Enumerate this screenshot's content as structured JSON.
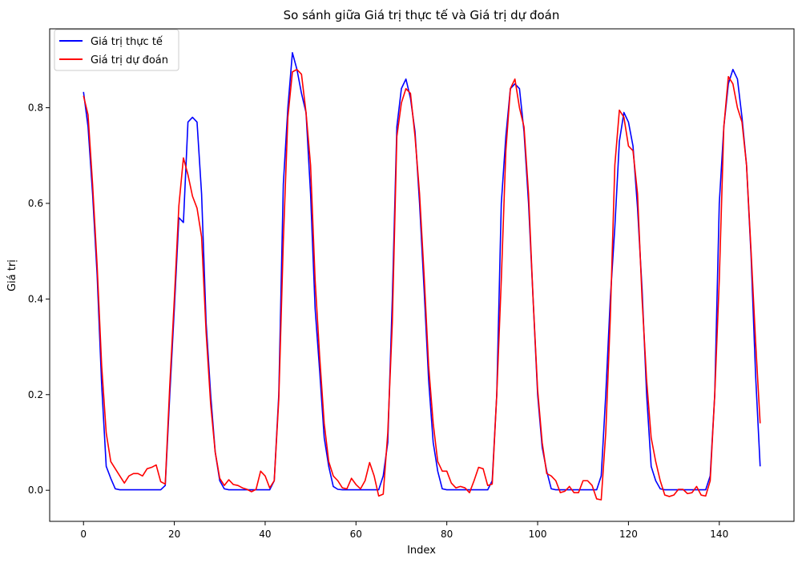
{
  "chart_data": {
    "type": "line",
    "title": "So sánh giữa Giá trị thực tế và Giá trị dự đoán",
    "xlabel": "Index",
    "ylabel": "Giá trị",
    "xlim": [
      -7.45,
      156.45
    ],
    "ylim": [
      -0.065,
      0.965
    ],
    "xticks": [
      0,
      20,
      40,
      60,
      80,
      100,
      120,
      140
    ],
    "yticks": [
      0.0,
      0.2,
      0.4,
      0.6,
      0.8
    ],
    "x_tick_labels": [
      "0",
      "20",
      "40",
      "60",
      "80",
      "100",
      "120",
      "140"
    ],
    "y_tick_labels": [
      "0.0",
      "0.2",
      "0.4",
      "0.6",
      "0.8"
    ],
    "grid": false,
    "legend_position": "upper-left",
    "series": [
      {
        "name": "Giá trị thực tế",
        "color": "#0000ff",
        "values": [
          0.833,
          0.76,
          0.62,
          0.45,
          0.22,
          0.05,
          0.025,
          0.003,
          0.001,
          0.001,
          0.001,
          0.001,
          0.001,
          0.001,
          0.001,
          0.001,
          0.001,
          0.001,
          0.01,
          0.2,
          0.38,
          0.57,
          0.56,
          0.77,
          0.78,
          0.77,
          0.62,
          0.35,
          0.2,
          0.08,
          0.02,
          0.003,
          0.001,
          0.001,
          0.001,
          0.001,
          0.001,
          0.001,
          0.001,
          0.001,
          0.001,
          0.001,
          0.02,
          0.2,
          0.64,
          0.8,
          0.915,
          0.88,
          0.83,
          0.79,
          0.62,
          0.38,
          0.25,
          0.11,
          0.05,
          0.008,
          0.002,
          0.001,
          0.001,
          0.001,
          0.001,
          0.001,
          0.001,
          0.001,
          0.001,
          0.001,
          0.03,
          0.1,
          0.4,
          0.76,
          0.84,
          0.86,
          0.82,
          0.75,
          0.6,
          0.42,
          0.23,
          0.1,
          0.04,
          0.003,
          0.001,
          0.001,
          0.001,
          0.001,
          0.001,
          0.001,
          0.001,
          0.001,
          0.001,
          0.001,
          0.02,
          0.2,
          0.6,
          0.74,
          0.84,
          0.85,
          0.84,
          0.75,
          0.6,
          0.4,
          0.2,
          0.09,
          0.04,
          0.003,
          0.001,
          0.001,
          0.001,
          0.001,
          0.001,
          0.001,
          0.001,
          0.001,
          0.001,
          0.001,
          0.03,
          0.2,
          0.4,
          0.55,
          0.73,
          0.79,
          0.77,
          0.72,
          0.59,
          0.42,
          0.2,
          0.05,
          0.02,
          0.003,
          0.001,
          0.001,
          0.001,
          0.001,
          0.001,
          0.001,
          0.001,
          0.001,
          0.001,
          0.001,
          0.03,
          0.2,
          0.6,
          0.76,
          0.85,
          0.88,
          0.86,
          0.78,
          0.68,
          0.49,
          0.24,
          0.05
        ]
      },
      {
        "name": "Giá trị dự đoán",
        "color": "#ff0000",
        "values": [
          0.825,
          0.785,
          0.64,
          0.47,
          0.26,
          0.12,
          0.06,
          0.045,
          0.03,
          0.015,
          0.03,
          0.035,
          0.035,
          0.03,
          0.045,
          0.048,
          0.053,
          0.018,
          0.013,
          0.22,
          0.4,
          0.595,
          0.695,
          0.66,
          0.615,
          0.59,
          0.53,
          0.33,
          0.18,
          0.08,
          0.025,
          0.01,
          0.022,
          0.012,
          0.01,
          0.005,
          0.002,
          -0.003,
          0.002,
          0.04,
          0.03,
          0.005,
          0.02,
          0.19,
          0.52,
          0.78,
          0.875,
          0.88,
          0.87,
          0.79,
          0.68,
          0.44,
          0.28,
          0.14,
          0.06,
          0.03,
          0.02,
          0.005,
          0.003,
          0.025,
          0.012,
          0.003,
          0.02,
          0.058,
          0.03,
          -0.012,
          -0.008,
          0.12,
          0.35,
          0.74,
          0.81,
          0.84,
          0.83,
          0.74,
          0.62,
          0.45,
          0.26,
          0.14,
          0.06,
          0.04,
          0.04,
          0.015,
          0.005,
          0.008,
          0.005,
          -0.005,
          0.02,
          0.048,
          0.045,
          0.01,
          0.013,
          0.2,
          0.44,
          0.71,
          0.84,
          0.86,
          0.8,
          0.76,
          0.62,
          0.4,
          0.21,
          0.1,
          0.035,
          0.03,
          0.02,
          -0.005,
          -0.002,
          0.008,
          -0.005,
          -0.005,
          0.02,
          0.02,
          0.01,
          -0.018,
          -0.02,
          0.12,
          0.36,
          0.68,
          0.795,
          0.78,
          0.72,
          0.71,
          0.62,
          0.4,
          0.23,
          0.11,
          0.06,
          0.02,
          -0.01,
          -0.013,
          -0.01,
          0.002,
          0.002,
          -0.007,
          -0.005,
          0.008,
          -0.01,
          -0.012,
          0.02,
          0.2,
          0.44,
          0.76,
          0.865,
          0.85,
          0.8,
          0.77,
          0.68,
          0.5,
          0.31,
          0.14
        ]
      }
    ]
  }
}
